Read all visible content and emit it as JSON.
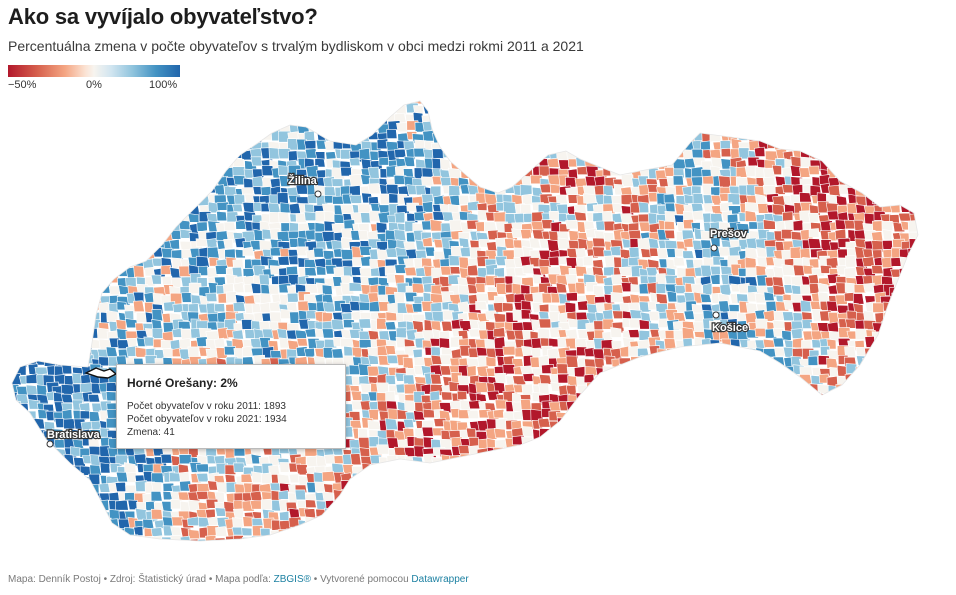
{
  "title": "Ako sa vyvíjalo obyvateľstvo?",
  "subtitle": "Percentuálna zmena v počte obyvateľov s trvalým bydliskom v obci medzi rokmi 2011 a 2021",
  "legend": {
    "min_label": "−50%",
    "mid_label": "0%",
    "max_label": "100%",
    "colors": [
      "#b2182b",
      "#d6604d",
      "#f4a582",
      "#f7f4ef",
      "#92c5de",
      "#4393c3",
      "#2166ac"
    ]
  },
  "cities": [
    {
      "name": "Žilina"
    },
    {
      "name": "Prešov"
    },
    {
      "name": "Košice"
    },
    {
      "name": "Bratislava"
    }
  ],
  "tooltip": {
    "title": "Horné Orešany: 2%",
    "line1": "Počet obyvateľov v roku 2011: 1893",
    "line2": "Počet obyvateľov v roku 2021: 1934",
    "line3": "Zmena: 41"
  },
  "footer": {
    "author": "Mapa: Denník Postoj",
    "sep1": " • ",
    "source": "Zdroj: Štatistický úrad",
    "sep2": " • ",
    "map_by": "Mapa podľa: ",
    "zbgis": "ZBGIS®",
    "sep3": " • ",
    "created": "Vytvorené pomocou ",
    "datawrapper": "Datawrapper"
  }
}
